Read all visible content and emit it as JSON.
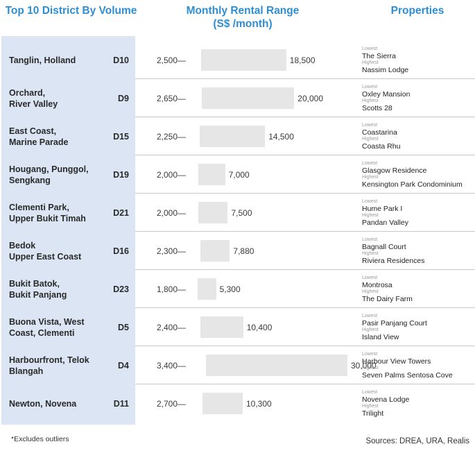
{
  "headers": {
    "district": "Top 10 District By Volume",
    "range_line1": "Monthly Rental Range",
    "range_line2": "(S$ /month)",
    "properties": "Properties"
  },
  "labels": {
    "lowest": "Lowest",
    "highest": "Highest"
  },
  "footnote": "*Excludes outliers",
  "sources": "Sources: DREA, URA, Realis",
  "colors": {
    "accent": "#2e8ed3",
    "panel": "#dbe5f3",
    "bar": "#e6e6e6"
  },
  "chart_data": {
    "type": "bar",
    "title": "Monthly Rental Range (S$ /month)",
    "rows": [
      {
        "district": "Tanglin, Holland",
        "code": "D10",
        "low": 2500,
        "high": 18500,
        "low_label": "2,500",
        "high_label": "18,500",
        "lowest_property": "The Sierra",
        "highest_property": "Nassim Lodge"
      },
      {
        "district": "Orchard,\nRiver Valley",
        "code": "D9",
        "low": 2650,
        "high": 20000,
        "low_label": "2,650",
        "high_label": "20,000",
        "lowest_property": "Oxley Mansion",
        "highest_property": "Scotts 28"
      },
      {
        "district": "East Coast,\nMarine Parade",
        "code": "D15",
        "low": 2250,
        "high": 14500,
        "low_label": "2,250",
        "high_label": "14,500",
        "lowest_property": "Coastarina",
        "highest_property": "Coasta Rhu"
      },
      {
        "district": "Hougang, Punggol,\nSengkang",
        "code": "D19",
        "low": 2000,
        "high": 7000,
        "low_label": "2,000",
        "high_label": "7,000",
        "lowest_property": "Glasgow Residence",
        "highest_property": "Kensington Park Condominium"
      },
      {
        "district": "Clementi Park,\nUpper Bukit Timah",
        "code": "D21",
        "low": 2000,
        "high": 7500,
        "low_label": "2,000",
        "high_label": "7,500",
        "lowest_property": "Hume Park I",
        "highest_property": "Pandan Valley"
      },
      {
        "district": "Bedok\nUpper East Coast",
        "code": "D16",
        "low": 2300,
        "high": 7880,
        "low_label": "2,300",
        "high_label": "7,880",
        "lowest_property": "Bagnall Court",
        "highest_property": "Riviera Residences"
      },
      {
        "district": "Bukit Batok,\nBukit Panjang",
        "code": "D23",
        "low": 1800,
        "high": 5300,
        "low_label": "1,800",
        "high_label": "5,300",
        "lowest_property": "Montrosa",
        "highest_property": "The Dairy Farm"
      },
      {
        "district": "Buona Vista, West\nCoast, Clementi",
        "code": "D5",
        "low": 2400,
        "high": 10400,
        "low_label": "2,400",
        "high_label": "10,400",
        "lowest_property": "Pasir Panjang Court",
        "highest_property": "Island View"
      },
      {
        "district": "Harbourfront, Telok\nBlangah",
        "code": "D4",
        "low": 3400,
        "high": 30000,
        "low_label": "3,400",
        "high_label": "30,000",
        "lowest_property": "Harbour View Towers",
        "highest_property": "Seven Palms Sentosa Cove"
      },
      {
        "district": "Newton, Novena",
        "code": "D11",
        "low": 2700,
        "high": 10300,
        "low_label": "2,700",
        "high_label": "10,300",
        "lowest_property": "Novena Lodge",
        "highest_property": "Trilight"
      }
    ]
  }
}
